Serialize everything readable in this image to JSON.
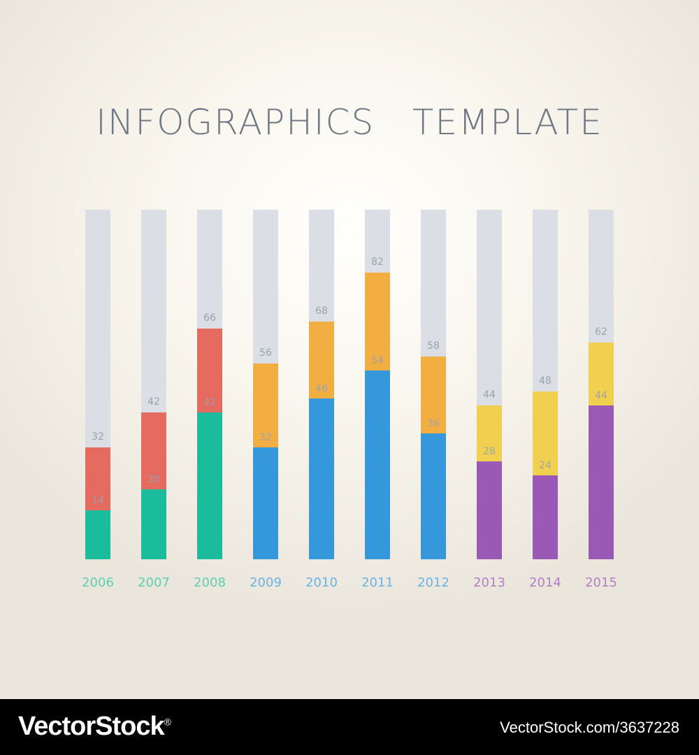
{
  "title": "INFOGRAPHICS   TEMPLATE",
  "chart_data": {
    "type": "bar",
    "categories": [
      "2006",
      "2007",
      "2008",
      "2009",
      "2010",
      "2011",
      "2012",
      "2013",
      "2014",
      "2015"
    ],
    "series_bottom": [
      14,
      20,
      42,
      32,
      46,
      54,
      36,
      28,
      24,
      44
    ],
    "series_top": [
      32,
      42,
      66,
      56,
      68,
      82,
      58,
      44,
      48,
      62
    ],
    "ylim": [
      0,
      100
    ],
    "bottom_colors": [
      "#1abc9c",
      "#1abc9c",
      "#1abc9c",
      "#3498db",
      "#3498db",
      "#3498db",
      "#3498db",
      "#9b59b6",
      "#9b59b6",
      "#9b59b6"
    ],
    "top_colors": [
      "#e56b61",
      "#e56b61",
      "#e56b61",
      "#f3ae42",
      "#f3ae42",
      "#f3ae42",
      "#f3ae42",
      "#f1d04f",
      "#f1d04f",
      "#f1d04f"
    ],
    "track_color": "#dbdfe5",
    "label_colors": [
      "#5fcfb0",
      "#5fcfb0",
      "#5fcfb0",
      "#6ab4e3",
      "#6ab4e3",
      "#6ab4e3",
      "#6ab4e3",
      "#b27fc6",
      "#b27fc6",
      "#b27fc6"
    ],
    "value_label_color": "#9aa1ab"
  },
  "footer": {
    "brand": "VectorStock",
    "brand_mark": "®",
    "url": "VectorStock.com/3637228"
  }
}
